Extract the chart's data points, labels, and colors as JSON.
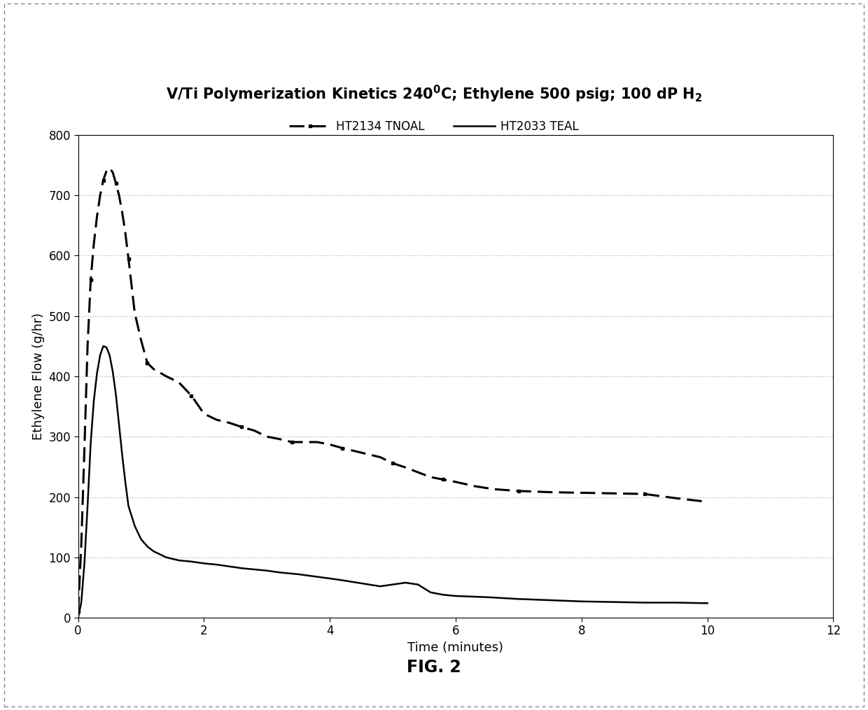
{
  "title": "V/Ti Polymerization Kinetics 240$^0$C; Ethylene 500 psig; 100 dP H$_2$",
  "xlabel": "Time (minutes)",
  "ylabel": "Ethylene Flow (g/hr)",
  "xlim": [
    0,
    12
  ],
  "ylim": [
    0,
    800
  ],
  "xticks": [
    0,
    2,
    4,
    6,
    8,
    10,
    12
  ],
  "yticks": [
    0,
    100,
    200,
    300,
    400,
    500,
    600,
    700,
    800
  ],
  "legend1_label": "HT2134 TNOAL",
  "legend2_label": "HT2033 TEAL",
  "fig_caption": "FIG. 2",
  "line_color": "#000000",
  "background_color": "#ffffff",
  "grid_color": "#b0b0b0",
  "tnoal_x": [
    0.0,
    0.05,
    0.1,
    0.15,
    0.2,
    0.25,
    0.3,
    0.35,
    0.4,
    0.45,
    0.5,
    0.55,
    0.6,
    0.65,
    0.7,
    0.75,
    0.8,
    0.85,
    0.9,
    1.0,
    1.1,
    1.2,
    1.4,
    1.6,
    1.8,
    2.0,
    2.2,
    2.4,
    2.6,
    2.8,
    3.0,
    3.2,
    3.4,
    3.6,
    3.8,
    4.0,
    4.2,
    4.4,
    4.6,
    4.8,
    5.0,
    5.2,
    5.4,
    5.6,
    5.8,
    6.0,
    6.3,
    6.6,
    7.0,
    7.5,
    8.0,
    8.5,
    9.0,
    9.5,
    10.0
  ],
  "tnoal_y": [
    10,
    120,
    280,
    450,
    560,
    620,
    665,
    700,
    725,
    740,
    745,
    738,
    720,
    700,
    672,
    638,
    595,
    550,
    505,
    460,
    422,
    412,
    400,
    390,
    368,
    338,
    328,
    323,
    316,
    310,
    300,
    296,
    291,
    291,
    291,
    287,
    281,
    276,
    271,
    266,
    256,
    249,
    241,
    233,
    229,
    225,
    218,
    213,
    210,
    208,
    207,
    206,
    205,
    198,
    192
  ],
  "teal_x": [
    0.0,
    0.05,
    0.1,
    0.15,
    0.2,
    0.25,
    0.3,
    0.35,
    0.4,
    0.45,
    0.5,
    0.55,
    0.6,
    0.65,
    0.7,
    0.75,
    0.8,
    0.9,
    1.0,
    1.1,
    1.2,
    1.4,
    1.6,
    1.8,
    2.0,
    2.2,
    2.4,
    2.6,
    2.8,
    3.0,
    3.2,
    3.5,
    4.0,
    4.2,
    4.5,
    4.8,
    5.0,
    5.2,
    5.4,
    5.6,
    5.8,
    6.0,
    6.5,
    7.0,
    7.5,
    8.0,
    8.5,
    9.0,
    9.5,
    10.0
  ],
  "teal_y": [
    0,
    25,
    90,
    185,
    290,
    360,
    405,
    435,
    450,
    448,
    435,
    408,
    370,
    320,
    270,
    225,
    185,
    152,
    130,
    118,
    110,
    100,
    95,
    93,
    90,
    88,
    85,
    82,
    80,
    78,
    75,
    72,
    65,
    62,
    57,
    52,
    55,
    58,
    55,
    42,
    38,
    36,
    34,
    31,
    29,
    27,
    26,
    25,
    25,
    24
  ],
  "outer_border_color": "#aaaaaa",
  "outer_border_lw": 0.8
}
